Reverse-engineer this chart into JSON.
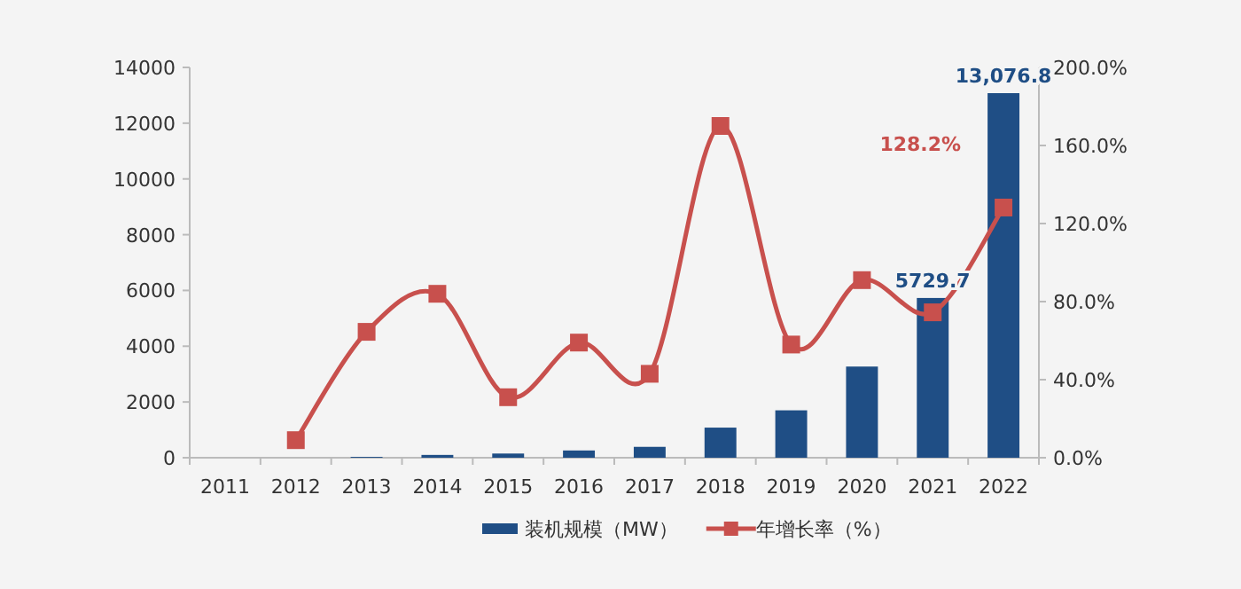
{
  "chart_data": {
    "type": "bar",
    "categories": [
      "2011",
      "2012",
      "2013",
      "2014",
      "2015",
      "2016",
      "2017",
      "2018",
      "2019",
      "2020",
      "2021",
      "2022"
    ],
    "series": [
      {
        "name": "装机规模（MW）",
        "color": "#1f4e85",
        "values": [
          null,
          null,
          30,
          100,
          150,
          260,
          390,
          1080,
          1700,
          3270,
          5729.7,
          13076.8
        ],
        "value_labels": [
          null,
          null,
          null,
          null,
          null,
          null,
          null,
          null,
          null,
          null,
          "5729.7",
          "13,076.8"
        ]
      },
      {
        "name": "年增长率（%）",
        "type": "line",
        "axis": "y2",
        "color": "#c8504d",
        "marker": "square",
        "values": [
          null,
          9,
          64.5,
          84,
          31,
          59,
          43,
          170,
          58,
          91,
          74.5,
          128.2
        ],
        "value_labels": [
          null,
          null,
          null,
          null,
          null,
          null,
          null,
          null,
          null,
          null,
          null,
          "128.2%"
        ]
      }
    ],
    "ylim": [
      0,
      14000
    ],
    "yticks": [
      0,
      2000,
      4000,
      6000,
      8000,
      10000,
      12000,
      14000
    ],
    "y2lim": [
      0,
      200
    ],
    "y2ticks": [
      {
        "value": 0,
        "label": "0.0%"
      },
      {
        "value": 40,
        "label": "40.0%"
      },
      {
        "value": 80,
        "label": "80.0%"
      },
      {
        "value": 120,
        "label": "120.0%"
      },
      {
        "value": 160,
        "label": "160.0%"
      },
      {
        "value": 200,
        "label": "200.0%"
      }
    ],
    "legend": "bottom",
    "grid": false
  }
}
